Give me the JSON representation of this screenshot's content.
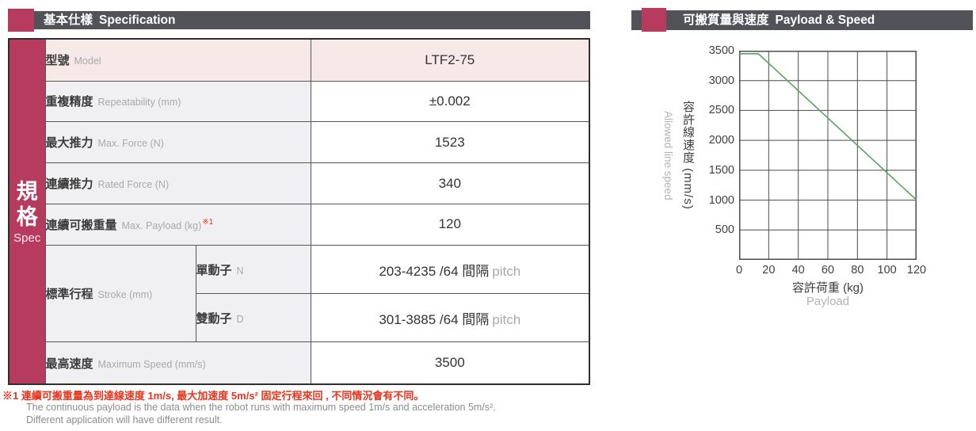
{
  "colors": {
    "accent": "#b63b5e",
    "header_bar": "#515358",
    "note_red": "#e8341c",
    "highlight_row_bg": "#f8e9e9",
    "label_cell_bg": "#f0f0f2",
    "line_green": "#56a45e"
  },
  "spec_section": {
    "title_zh": "基本仕樣",
    "title_en": "Specification",
    "sidebar": {
      "zh1": "規",
      "zh2": "格",
      "en": "Spec"
    },
    "rows": [
      {
        "label_zh": "型號",
        "label_en": "Model",
        "value": "LTF2-75"
      },
      {
        "label_zh": "重複精度",
        "label_en": "Repeatability (mm)",
        "value": "±0.002"
      },
      {
        "label_zh": "最大推力",
        "label_en": "Max. Force (N)",
        "value": "1523"
      },
      {
        "label_zh": "連續推力",
        "label_en": "Rated Force (N)",
        "value": "340"
      },
      {
        "label_zh": "連續可搬重量",
        "label_en": "Max. Payload (kg)",
        "sup": "※1",
        "value": "120"
      },
      {
        "label_zh": "標準行程",
        "label_en": "Stroke (mm)",
        "subrows": [
          {
            "type_zh": "單動子",
            "type_en": "N",
            "value": "203-4235 /64 間隔",
            "value_gray": "pitch"
          },
          {
            "type_zh": "雙動子",
            "type_en": "D",
            "value": "301-3885 /64 間隔",
            "value_gray": "pitch"
          }
        ]
      },
      {
        "label_zh": "最高速度",
        "label_en": "Maximum Speed (mm/s)",
        "value": "3500"
      }
    ]
  },
  "footnotes": {
    "note1_zh": "※1 連續可搬重量為到達線速度 1m/s, 最大加速度 5m/s² 固定行程來回 , 不同情況會有不同。",
    "note1_en1": "The continuous payload is the data when the robot runs with maximum speed 1m/s and acceleration 5m/s².",
    "note1_en2": "Different application will have different result."
  },
  "chart_section": {
    "title_zh": "可搬質量與速度",
    "title_en": "Payload & Speed"
  },
  "chart_data": {
    "type": "line",
    "title": "可搬質量與速度 Payload & Speed",
    "xlabel_zh": "容許荷重 (kg)",
    "xlabel_en": "Payload",
    "ylabel_zh": "容許線速度 (mm/s)",
    "ylabel_en": "Allowed line speed",
    "xlim": [
      0,
      120
    ],
    "ylim": [
      0,
      3500
    ],
    "x_ticks": [
      0,
      20,
      40,
      60,
      80,
      100,
      120
    ],
    "y_ticks": [
      500,
      1000,
      1500,
      2000,
      2500,
      3000,
      3500
    ],
    "grid": {
      "on": true,
      "x_step": 20,
      "y_step": 500
    },
    "grid_color": "#4c4c4c",
    "legend": "none",
    "series": [
      {
        "name": "allowed-line-speed",
        "color": "#56a45e",
        "points": [
          [
            0,
            3450
          ],
          [
            13,
            3450
          ],
          [
            120,
            1000
          ]
        ]
      }
    ]
  }
}
